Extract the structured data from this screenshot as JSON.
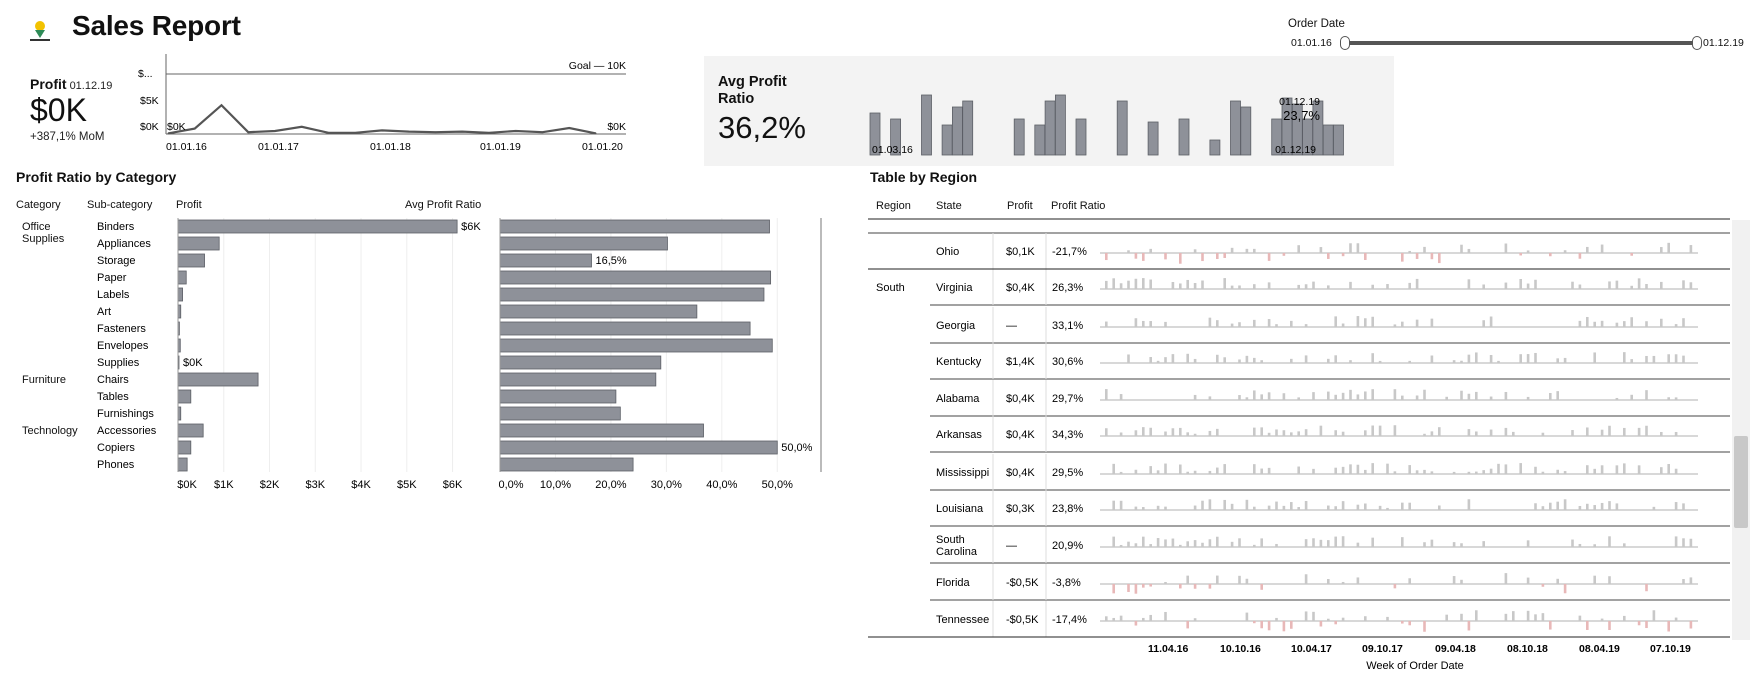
{
  "header": {
    "title": "Sales Report",
    "date_filter": {
      "label": "Order Date",
      "start": "01.01.16",
      "end": "01.12.19"
    }
  },
  "profit_kpi": {
    "label": "Profit",
    "date": "01.12.19",
    "value": "$0K",
    "mom": "+387,1% MoM",
    "sparkline": {
      "y_ticks": [
        "$...",
        "$5K",
        "$0K"
      ],
      "goal_label": "Goal — 10K",
      "start_label": "$0K",
      "end_label": "$0K",
      "x_ticks": [
        "01.01.16",
        "01.01.17",
        "01.01.18",
        "01.01.19",
        "01.01.20"
      ]
    }
  },
  "ratio_kpi": {
    "title": "Avg Profit Ratio",
    "value": "36,2%",
    "start_label": "01.03.16",
    "end_label": "01.12.19",
    "end_value": "23,7%",
    "end_label_2": "01.12.19"
  },
  "category_section": {
    "title": "Profit Ratio  by Category",
    "headers": {
      "category": "Category",
      "subcategory": "Sub-category",
      "profit": "Profit",
      "ratio": "Avg Profit Ratio"
    },
    "categories": [
      {
        "name": "Office Supplies",
        "rows": 9
      },
      {
        "name": "Furniture",
        "rows": 3
      },
      {
        "name": "Technology",
        "rows": 3
      }
    ],
    "profit_axis": [
      "$0K",
      "$1K",
      "$2K",
      "$3K",
      "$4K",
      "$5K",
      "$6K"
    ],
    "ratio_axis": [
      "0,0%",
      "10,0%",
      "20,0%",
      "30,0%",
      "40,0%",
      "50,0%"
    ],
    "annotations": {
      "binders_profit": "$6K",
      "supplies_profit": "$0K",
      "storage_ratio": "16,5%",
      "copiers_ratio": "50,0%"
    }
  },
  "chart_data": [
    {
      "type": "line",
      "title": "Profit",
      "x": [
        "01.01.16",
        "01.04.16",
        "01.07.16",
        "01.10.16",
        "01.01.17",
        "01.04.17",
        "01.07.17",
        "01.10.17",
        "01.01.18",
        "01.04.18",
        "01.07.18",
        "01.10.18",
        "01.01.19",
        "01.04.19",
        "01.07.19",
        "01.10.19",
        "01.12.19"
      ],
      "values": [
        0.1,
        0.9,
        4.8,
        0.3,
        0.5,
        1.2,
        0.2,
        0.2,
        0.6,
        0.4,
        0.3,
        0.4,
        0.2,
        0.5,
        0.3,
        1.0,
        0.1
      ],
      "goal": 10,
      "ylim": [
        0,
        10
      ],
      "unit": "$K"
    },
    {
      "type": "bar",
      "title": "Avg Profit Ratio",
      "values": [
        0.7,
        0,
        0.6,
        0,
        0,
        1.0,
        0,
        0.5,
        0.8,
        0.9,
        0,
        0,
        0,
        0,
        0.6,
        0,
        0.5,
        0.9,
        1.0,
        0,
        0.6,
        0,
        0,
        0,
        0.9,
        0,
        0,
        0.55,
        0,
        0,
        0.6,
        0,
        0,
        0.25,
        0,
        0.9,
        0.8,
        0,
        0,
        0.6,
        0.95,
        0.85,
        0.6,
        0.9,
        0.5,
        0.5
      ],
      "ylim": [
        0,
        1
      ]
    },
    {
      "type": "bar",
      "title": "Profit by Sub-category",
      "categories": [
        "Binders",
        "Appliances",
        "Storage",
        "Paper",
        "Labels",
        "Art",
        "Fasteners",
        "Envelopes",
        "Supplies",
        "Chairs",
        "Tables",
        "Furnishings",
        "Accessories",
        "Copiers",
        "Phones"
      ],
      "values": [
        6.1,
        0.9,
        0.58,
        0.18,
        0.1,
        0.06,
        0.03,
        0.05,
        0.0,
        1.75,
        0.28,
        0.06,
        0.55,
        0.28,
        0.2
      ],
      "xlim": [
        0,
        6.6
      ],
      "unit": "$K"
    },
    {
      "type": "bar",
      "title": "Avg Profit Ratio by Sub-category",
      "categories": [
        "Binders",
        "Appliances",
        "Storage",
        "Paper",
        "Labels",
        "Art",
        "Fasteners",
        "Envelopes",
        "Supplies",
        "Chairs",
        "Tables",
        "Furnishings",
        "Accessories",
        "Copiers",
        "Phones"
      ],
      "values": [
        48.6,
        30.2,
        16.5,
        48.8,
        47.6,
        35.5,
        45.1,
        49.1,
        29.0,
        28.1,
        20.9,
        21.7,
        36.7,
        50.0,
        24.0
      ],
      "xlim": [
        0,
        55
      ],
      "unit": "%"
    },
    {
      "type": "table",
      "title": "Table by Region",
      "headers": [
        "Region",
        "State",
        "Profit",
        "Profit Ratio"
      ],
      "rows": [
        {
          "region": "",
          "state": "Ohio",
          "profit": "$0,1K",
          "ratio": "-21,7%"
        },
        {
          "region": "South",
          "state": "Virginia",
          "profit": "$0,4K",
          "ratio": "26,3%"
        },
        {
          "region": "",
          "state": "Georgia",
          "profit": "—",
          "ratio": "33,1%"
        },
        {
          "region": "",
          "state": "Kentucky",
          "profit": "$1,4K",
          "ratio": "30,6%"
        },
        {
          "region": "",
          "state": "Alabama",
          "profit": "$0,4K",
          "ratio": "29,7%"
        },
        {
          "region": "",
          "state": "Arkansas",
          "profit": "$0,4K",
          "ratio": "34,3%"
        },
        {
          "region": "",
          "state": "Mississippi",
          "profit": "$0,4K",
          "ratio": "29,5%"
        },
        {
          "region": "",
          "state": "Louisiana",
          "profit": "$0,3K",
          "ratio": "23,8%"
        },
        {
          "region": "",
          "state": "South Carolina",
          "profit": "—",
          "ratio": "20,9%"
        },
        {
          "region": "",
          "state": "Florida",
          "profit": "-$0,5K",
          "ratio": "-3,8%"
        },
        {
          "region": "",
          "state": "Tennessee",
          "profit": "-$0,5K",
          "ratio": "-17,4%"
        }
      ],
      "x_ticks": [
        "11.04.16",
        "10.10.16",
        "10.04.17",
        "09.10.17",
        "09.04.18",
        "08.10.18",
        "08.04.19",
        "07.10.19"
      ],
      "x_label": "Week of Order Date"
    }
  ],
  "region_section": {
    "title": "Table by Region",
    "headers": {
      "region": "Region",
      "state": "State",
      "profit": "Profit",
      "ratio": "Profit Ratio"
    }
  },
  "colors": {
    "bar": "#8e9199",
    "bar_border": "#5c5f66",
    "line": "#555555",
    "negative": "#e8b8b8",
    "positive": "#c8c8c8"
  }
}
